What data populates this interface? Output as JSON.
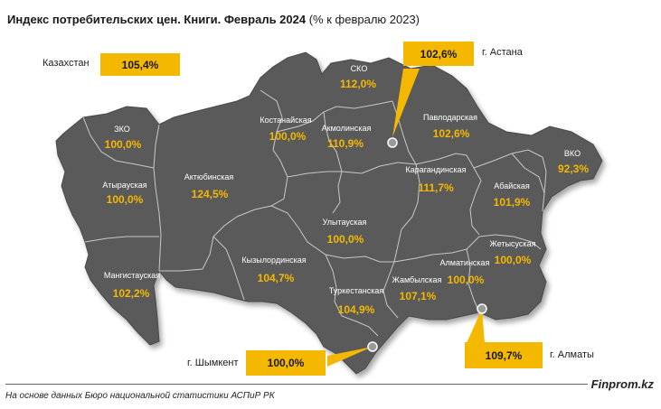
{
  "title": {
    "bold": "Индекс потребительских цен. Книги. Февраль 2024",
    "normal": " (% к февралю 2023)"
  },
  "kazakhstan": {
    "label": "Казахстан",
    "value": "105,4%"
  },
  "callouts": {
    "astana": {
      "label": "г. Астана",
      "value": "102,6%"
    },
    "almaty": {
      "label": "г. Алматы",
      "value": "109,7%"
    },
    "shymkent": {
      "label": "г. Шымкент",
      "value": "100,0%"
    }
  },
  "regions": [
    {
      "name": "ЗКО",
      "value": "100,0%"
    },
    {
      "name": "Атырауская",
      "value": "100,0%"
    },
    {
      "name": "Актюбинская",
      "value": "124,5%"
    },
    {
      "name": "Мангистауская",
      "value": "102,2%"
    },
    {
      "name": "Костанайская",
      "value": "100,0%"
    },
    {
      "name": "СКО",
      "value": "112,0%"
    },
    {
      "name": "Акмолинская",
      "value": "110,9%"
    },
    {
      "name": "Павлодарская",
      "value": "102,6%"
    },
    {
      "name": "ВКО",
      "value": "92,3%"
    },
    {
      "name": "Карагандинская",
      "value": "111,7%"
    },
    {
      "name": "Абайская",
      "value": "101,9%"
    },
    {
      "name": "Улытауская",
      "value": "100,0%"
    },
    {
      "name": "Кызылординская",
      "value": "104,7%"
    },
    {
      "name": "Туркестанская",
      "value": "104,9%"
    },
    {
      "name": "Жамбылская",
      "value": "107,1%"
    },
    {
      "name": "Алматинская",
      "value": "100,0%"
    },
    {
      "name": "Жетысуская",
      "value": "100,0%"
    }
  ],
  "colors": {
    "map_fill": "#5a5a5a",
    "border": "#c8c8c8",
    "accent": "#f5b800"
  },
  "footer": {
    "source": "На основе данных Бюро национальной статистики АСПиР РК",
    "brand": "Finprom.kz"
  }
}
